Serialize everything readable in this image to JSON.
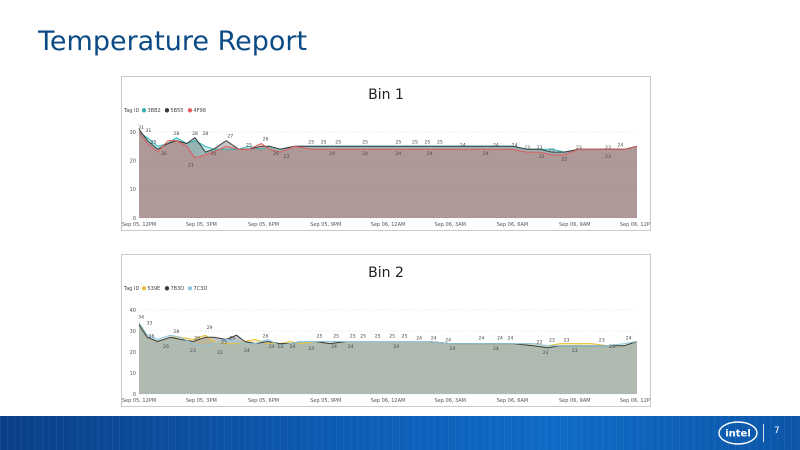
{
  "slide": {
    "title": "Temperature Report",
    "page_number": "7",
    "logo_text": "intel"
  },
  "chart_data": [
    {
      "type": "area",
      "title": "Bin 1",
      "legend_title": "Tag ID",
      "legend_position": "top-left",
      "ylim": [
        0,
        30
      ],
      "yticks": [
        0,
        10,
        20,
        30
      ],
      "xlim": [
        0,
        24
      ],
      "xticks": [
        0,
        3,
        6,
        9,
        12,
        15,
        18,
        21,
        24
      ],
      "xtick_labels": [
        "Sep 05, 12PM",
        "Sep 05, 3PM",
        "Sep 05, 6PM",
        "Sep 05, 9PM",
        "Sep 06, 12AM",
        "Sep 06, 3AM",
        "Sep 06, 6AM",
        "Sep 06, 9AM",
        "Sep 06, 12PM"
      ],
      "series": [
        {
          "name": "3BB2",
          "color": "#2fb3b3",
          "x": [
            0,
            0.4,
            0.9,
            1.4,
            1.8,
            2.3,
            2.7,
            3.2,
            3.6,
            4.2,
            4.8,
            5.3,
            5.9,
            6.3,
            6.8,
            7.5,
            8.3,
            9,
            10,
            11,
            12,
            13,
            14,
            15,
            16,
            17,
            18,
            18.7,
            19.3,
            19.9,
            20.5,
            21.2,
            22,
            22.8,
            23.4,
            24
          ],
          "y": [
            30,
            28,
            25,
            26,
            28,
            26,
            27,
            25,
            24,
            24,
            24,
            25,
            24,
            25,
            24,
            25,
            25,
            25,
            25,
            25,
            25,
            25,
            25,
            25,
            25,
            25,
            25,
            24,
            24,
            24,
            23,
            24,
            24,
            24,
            24,
            25
          ]
        },
        {
          "name": "5B55",
          "color": "#3a3a3a",
          "x": [
            0,
            0.4,
            0.9,
            1.4,
            1.8,
            2.3,
            2.7,
            3.2,
            3.6,
            4.2,
            4.8,
            5.3,
            5.9,
            6.3,
            6.8,
            7.5,
            8.3,
            9,
            10,
            11,
            12,
            13,
            14,
            15,
            16,
            17,
            18,
            18.7,
            19.3,
            19.9,
            20.5,
            21.2,
            22,
            22.8,
            23.4,
            24
          ],
          "y": [
            31,
            27,
            24,
            26,
            27,
            26,
            28,
            23,
            24,
            27,
            24,
            24,
            25,
            25,
            24,
            25,
            25,
            25,
            25,
            25,
            25,
            25,
            25,
            25,
            25,
            25,
            25,
            24,
            24,
            23,
            23,
            24,
            24,
            24,
            24,
            25
          ]
        },
        {
          "name": "4F98",
          "color": "#e35b5b",
          "x": [
            0,
            0.4,
            0.9,
            1.4,
            1.8,
            2.3,
            2.7,
            3.2,
            3.6,
            4.2,
            4.8,
            5.3,
            5.9,
            6.3,
            6.8,
            7.5,
            8.3,
            9,
            10,
            11,
            12,
            13,
            14,
            15,
            16,
            17,
            18,
            18.7,
            19.3,
            19.9,
            20.5,
            21.2,
            22,
            22.8,
            23.4,
            24
          ],
          "y": [
            30,
            26,
            23,
            27,
            27,
            25,
            21,
            22,
            23,
            25,
            24,
            24,
            26,
            24,
            23,
            25,
            24,
            24,
            24,
            24,
            24,
            24,
            24,
            24,
            24,
            24,
            24,
            23,
            23,
            22,
            22,
            24,
            24,
            24,
            24,
            25
          ]
        }
      ],
      "data_labels": [
        {
          "x": 0.1,
          "y": 31,
          "t": "31"
        },
        {
          "x": 0.45,
          "y": 30,
          "t": "31"
        },
        {
          "x": 0.7,
          "y": 26,
          "t": "25"
        },
        {
          "x": 1.2,
          "y": 22,
          "t": "26"
        },
        {
          "x": 1.8,
          "y": 29,
          "t": "28"
        },
        {
          "x": 2.7,
          "y": 29,
          "t": "28"
        },
        {
          "x": 3.2,
          "y": 29,
          "t": "28"
        },
        {
          "x": 3.6,
          "y": 22,
          "t": "25"
        },
        {
          "x": 2.5,
          "y": 18,
          "t": "21"
        },
        {
          "x": 4.4,
          "y": 28,
          "t": "27"
        },
        {
          "x": 5.3,
          "y": 25,
          "t": "25"
        },
        {
          "x": 6.1,
          "y": 27,
          "t": "26"
        },
        {
          "x": 6.6,
          "y": 22,
          "t": "26"
        },
        {
          "x": 7.1,
          "y": 21,
          "t": "23"
        },
        {
          "x": 8.3,
          "y": 26,
          "t": "25"
        },
        {
          "x": 8.9,
          "y": 26,
          "t": "25"
        },
        {
          "x": 9.6,
          "y": 26,
          "t": "25"
        },
        {
          "x": 10.9,
          "y": 26,
          "t": "25"
        },
        {
          "x": 9.3,
          "y": 22,
          "t": "24"
        },
        {
          "x": 10.9,
          "y": 22,
          "t": "24"
        },
        {
          "x": 12.5,
          "y": 26,
          "t": "25"
        },
        {
          "x": 13.3,
          "y": 26,
          "t": "25"
        },
        {
          "x": 13.9,
          "y": 26,
          "t": "25"
        },
        {
          "x": 14.5,
          "y": 26,
          "t": "25"
        },
        {
          "x": 12.5,
          "y": 22,
          "t": "24"
        },
        {
          "x": 14,
          "y": 22,
          "t": "24"
        },
        {
          "x": 15.6,
          "y": 25,
          "t": "24"
        },
        {
          "x": 16.7,
          "y": 22,
          "t": "24"
        },
        {
          "x": 17.2,
          "y": 25,
          "t": "24"
        },
        {
          "x": 18.1,
          "y": 25,
          "t": "24"
        },
        {
          "x": 18.7,
          "y": 24,
          "t": "23"
        },
        {
          "x": 19.3,
          "y": 24,
          "t": "23"
        },
        {
          "x": 19.4,
          "y": 21,
          "t": "22"
        },
        {
          "x": 19.9,
          "y": 23,
          "t": "22"
        },
        {
          "x": 20.5,
          "y": 20,
          "t": "22"
        },
        {
          "x": 21.2,
          "y": 24,
          "t": "23"
        },
        {
          "x": 22.6,
          "y": 24,
          "t": "23"
        },
        {
          "x": 23.2,
          "y": 25,
          "t": "24"
        },
        {
          "x": 22.6,
          "y": 21,
          "t": "23"
        }
      ]
    },
    {
      "type": "area",
      "title": "Bin 2",
      "legend_title": "Tag ID",
      "legend_position": "top-left",
      "ylim": [
        0,
        40
      ],
      "yticks": [
        0,
        10,
        20,
        30,
        40
      ],
      "xlim": [
        0,
        24
      ],
      "xticks": [
        0,
        3,
        6,
        9,
        12,
        15,
        18,
        21,
        24
      ],
      "xtick_labels": [
        "Sep 05, 12PM",
        "Sep 05, 3PM",
        "Sep 05, 6PM",
        "Sep 05, 9PM",
        "Sep 06, 12AM",
        "Sep 06, 3AM",
        "Sep 06, 6AM",
        "Sep 06, 9AM",
        "Sep 06, 12PM"
      ],
      "series": [
        {
          "name": "539E",
          "color": "#e8c13a",
          "x": [
            0,
            0.4,
            0.9,
            1.5,
            2,
            2.6,
            3.2,
            3.6,
            4.2,
            4.7,
            5.1,
            5.6,
            6.2,
            6.8,
            7.3,
            7.8,
            8.5,
            9.2,
            10,
            11,
            12,
            13,
            14,
            15,
            16,
            17,
            18,
            19,
            19.7,
            20.3,
            21,
            21.8,
            22.6,
            23.4,
            24
          ],
          "y": [
            34,
            27,
            25,
            27,
            27,
            26,
            28,
            25,
            24,
            24,
            25,
            26,
            24,
            24,
            25,
            24,
            25,
            24,
            25,
            25,
            25,
            25,
            25,
            24,
            24,
            24,
            24,
            24,
            23,
            24,
            24,
            24,
            23,
            23,
            25
          ]
        },
        {
          "name": "7B3D",
          "color": "#3a3a3a",
          "x": [
            0,
            0.4,
            0.9,
            1.5,
            2,
            2.6,
            3.2,
            3.6,
            4.2,
            4.7,
            5.1,
            5.6,
            6.2,
            6.8,
            7.3,
            7.8,
            8.5,
            9.2,
            10,
            11,
            12,
            13,
            14,
            15,
            16,
            17,
            18,
            19,
            19.7,
            20.3,
            21,
            21.8,
            22.6,
            23.4,
            24
          ],
          "y": [
            33,
            27,
            25,
            27,
            26,
            25,
            27,
            27,
            26,
            28,
            25,
            24,
            25,
            24,
            24,
            25,
            25,
            24,
            25,
            25,
            25,
            25,
            25,
            24,
            24,
            24,
            24,
            23,
            22,
            23,
            23,
            23,
            23,
            23,
            25
          ]
        },
        {
          "name": "7C3D",
          "color": "#8cc6e0",
          "x": [
            0,
            0.4,
            0.9,
            1.5,
            2,
            2.6,
            3.2,
            3.6,
            4.2,
            4.7,
            5.1,
            5.6,
            6.2,
            6.8,
            7.3,
            7.8,
            8.5,
            9.2,
            10,
            11,
            12,
            13,
            14,
            15,
            16,
            17,
            18,
            19,
            19.7,
            20.3,
            21,
            21.8,
            22.6,
            23.4,
            24
          ],
          "y": [
            34,
            28,
            26,
            28,
            27,
            24,
            23,
            24,
            26,
            25,
            24,
            24,
            26,
            23,
            24,
            25,
            25,
            25,
            25,
            25,
            25,
            25,
            25,
            24,
            24,
            24,
            24,
            24,
            23,
            23,
            23,
            23,
            23,
            24,
            25
          ]
        }
      ],
      "data_labels": [
        {
          "x": 0.1,
          "y": 36,
          "t": "34"
        },
        {
          "x": 0.5,
          "y": 33,
          "t": "33"
        },
        {
          "x": 0.6,
          "y": 27,
          "t": "26"
        },
        {
          "x": 1.3,
          "y": 22,
          "t": "26"
        },
        {
          "x": 1.8,
          "y": 29,
          "t": "28"
        },
        {
          "x": 2.6,
          "y": 20,
          "t": "23"
        },
        {
          "x": 2.8,
          "y": 26,
          "t": "26"
        },
        {
          "x": 3.4,
          "y": 31,
          "t": "29"
        },
        {
          "x": 3.9,
          "y": 19,
          "t": "22"
        },
        {
          "x": 4.5,
          "y": 26,
          "t": "26"
        },
        {
          "x": 4.1,
          "y": 24,
          "t": "25"
        },
        {
          "x": 5.2,
          "y": 20,
          "t": "24"
        },
        {
          "x": 6.1,
          "y": 27,
          "t": "26"
        },
        {
          "x": 6.4,
          "y": 22,
          "t": "24"
        },
        {
          "x": 6.8,
          "y": 22,
          "t": "23"
        },
        {
          "x": 7.4,
          "y": 22,
          "t": "24"
        },
        {
          "x": 8.7,
          "y": 27,
          "t": "25"
        },
        {
          "x": 9.5,
          "y": 27,
          "t": "25"
        },
        {
          "x": 10.3,
          "y": 27,
          "t": "25"
        },
        {
          "x": 10.8,
          "y": 27,
          "t": "25"
        },
        {
          "x": 11.5,
          "y": 27,
          "t": "25"
        },
        {
          "x": 12.2,
          "y": 27,
          "t": "25"
        },
        {
          "x": 12.8,
          "y": 27,
          "t": "25"
        },
        {
          "x": 8.3,
          "y": 21,
          "t": "24"
        },
        {
          "x": 9.4,
          "y": 22,
          "t": "24"
        },
        {
          "x": 10.2,
          "y": 22,
          "t": "24"
        },
        {
          "x": 12.4,
          "y": 22,
          "t": "24"
        },
        {
          "x": 13.5,
          "y": 26,
          "t": "24"
        },
        {
          "x": 14.2,
          "y": 26,
          "t": "24"
        },
        {
          "x": 14.9,
          "y": 25,
          "t": "24"
        },
        {
          "x": 15.1,
          "y": 21,
          "t": "24"
        },
        {
          "x": 16.5,
          "y": 26,
          "t": "24"
        },
        {
          "x": 17.4,
          "y": 26,
          "t": "24"
        },
        {
          "x": 17.9,
          "y": 26,
          "t": "24"
        },
        {
          "x": 17.2,
          "y": 21,
          "t": "24"
        },
        {
          "x": 19.3,
          "y": 24,
          "t": "22"
        },
        {
          "x": 19.9,
          "y": 25,
          "t": "23"
        },
        {
          "x": 20.6,
          "y": 25,
          "t": "23"
        },
        {
          "x": 19.6,
          "y": 19,
          "t": "22"
        },
        {
          "x": 21,
          "y": 20,
          "t": "23"
        },
        {
          "x": 22.3,
          "y": 25,
          "t": "23"
        },
        {
          "x": 22.8,
          "y": 22,
          "t": "23"
        },
        {
          "x": 23.6,
          "y": 26,
          "t": "24"
        }
      ]
    }
  ]
}
